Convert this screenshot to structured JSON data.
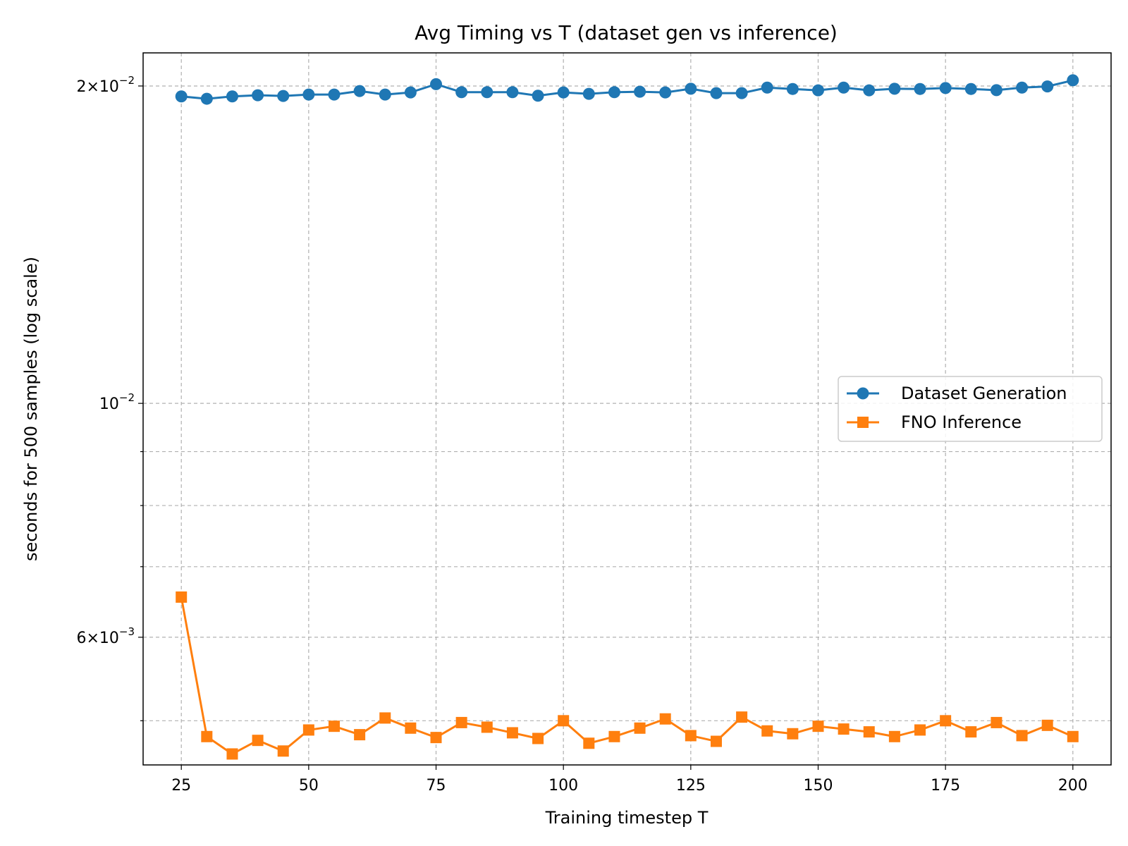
{
  "chart_data": {
    "type": "line",
    "title": "Avg Timing vs T (dataset gen vs inference)",
    "xlabel": "Training timestep T",
    "ylabel": "seconds for 500 samples (log scale)",
    "xlim": [
      17.5,
      207.5
    ],
    "ylim": [
      0.00454,
      0.0215
    ],
    "yscale": "log",
    "grid": true,
    "legend_position": "center-right",
    "x_ticks": [
      25,
      50,
      75,
      100,
      125,
      150,
      175,
      200
    ],
    "x": [
      25,
      30,
      35,
      40,
      45,
      50,
      55,
      60,
      65,
      70,
      75,
      80,
      85,
      90,
      95,
      100,
      105,
      110,
      115,
      120,
      125,
      130,
      135,
      140,
      145,
      150,
      155,
      160,
      165,
      170,
      175,
      180,
      185,
      190,
      195,
      200
    ],
    "y_ticks": [
      {
        "value": 0.02,
        "mantissa": "2",
        "base": "10",
        "exponent": "−2"
      },
      {
        "value": 0.01,
        "mantissa": "",
        "base": "10",
        "exponent": "−2"
      },
      {
        "value": 0.006,
        "mantissa": "6",
        "base": "10",
        "exponent": "−3"
      }
    ],
    "y_minor_gridlines": [
      0.005,
      0.007,
      0.008,
      0.009
    ],
    "series": [
      {
        "name": "Dataset Generation",
        "color": "#1f77b4",
        "marker": "circle",
        "values": [
          0.01955,
          0.01945,
          0.01955,
          0.0196,
          0.01957,
          0.01963,
          0.01963,
          0.01978,
          0.01963,
          0.01972,
          0.02008,
          0.01973,
          0.01973,
          0.01973,
          0.01958,
          0.01972,
          0.01966,
          0.01973,
          0.01975,
          0.01972,
          0.01988,
          0.01969,
          0.01969,
          0.01993,
          0.01987,
          0.01981,
          0.01993,
          0.01981,
          0.01988,
          0.01987,
          0.01991,
          0.01987,
          0.01982,
          0.01993,
          0.01998,
          0.02025
        ]
      },
      {
        "name": "FNO Inference",
        "color": "#ff7f0e",
        "marker": "square",
        "values": [
          0.00655,
          0.00483,
          0.00465,
          0.00479,
          0.00468,
          0.0049,
          0.00494,
          0.00485,
          0.00503,
          0.00492,
          0.00482,
          0.00498,
          0.00493,
          0.00487,
          0.00481,
          0.005,
          0.00476,
          0.00483,
          0.00492,
          0.00502,
          0.00484,
          0.00478,
          0.00504,
          0.00489,
          0.00486,
          0.00494,
          0.00491,
          0.00488,
          0.00483,
          0.0049,
          0.005,
          0.00488,
          0.00498,
          0.00484,
          0.00495,
          0.00483
        ]
      }
    ]
  }
}
